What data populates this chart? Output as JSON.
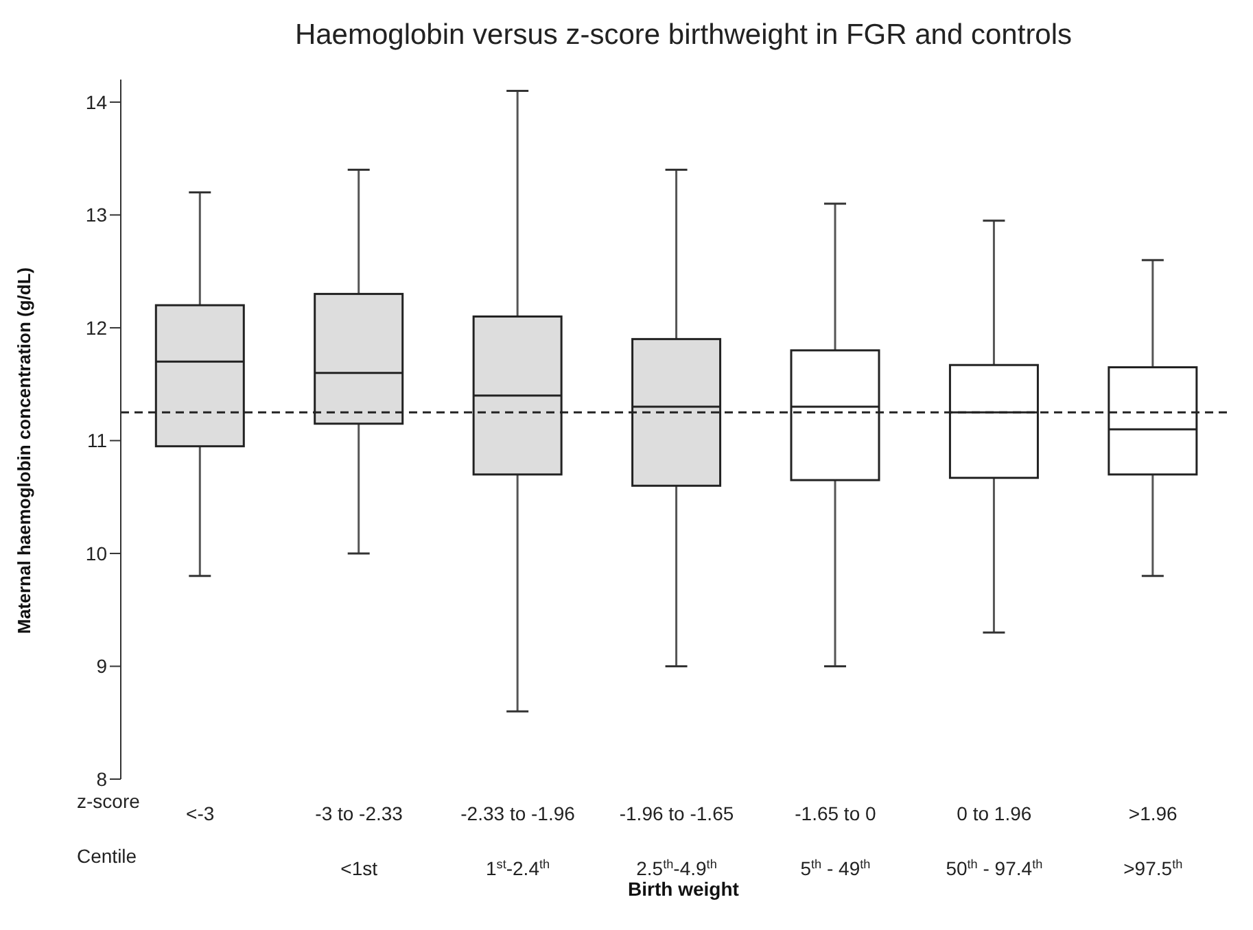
{
  "chart_data": {
    "type": "box",
    "title": "Haemoglobin versus z-score birthweight in FGR and controls",
    "xlabel": "Birth weight",
    "ylabel": "Maternal haemoglobin concentration (g/dL)",
    "categories": [
      "<-3",
      "-3 to -2.33\n<1st",
      "-2.33 to -1.96\n1$^{st}$-2.4$^{th}$",
      "-1.96 to -1.65\n2.5$^{th}$-4.9$^{th}$",
      "-1.65 to 0\n5$^{th}$ - 49$^{th}$",
      "0 to 1.96\n50$^{th}$ - 97.4$^{th}$",
      ">1.96\n>97.5$^{th}$"
    ],
    "boxes": [
      {
        "low": 9.8,
        "q1": 10.95,
        "median": 11.7,
        "q3": 12.2,
        "high": 13.2
      },
      {
        "low": 10.0,
        "q1": 11.15,
        "median": 11.6,
        "q3": 12.3,
        "high": 13.4
      },
      {
        "low": 8.6,
        "q1": 10.7,
        "median": 11.4,
        "q3": 12.1,
        "high": 14.1
      },
      {
        "low": 9.0,
        "q1": 10.6,
        "median": 11.3,
        "q3": 11.9,
        "high": 13.4
      },
      {
        "low": 9.0,
        "q1": 10.65,
        "median": 11.3,
        "q3": 11.8,
        "high": 13.1
      },
      {
        "low": 9.3,
        "q1": 10.67,
        "median": 11.25,
        "q3": 11.67,
        "high": 12.95
      },
      {
        "low": 9.8,
        "q1": 10.7,
        "median": 11.1,
        "q3": 11.65,
        "high": 12.6
      }
    ],
    "colors": [
      "#dddddd",
      "#dddddd",
      "#dddddd",
      "#dddddd",
      "#ffffff",
      "#ffffff",
      "#ffffff"
    ],
    "ylim": [
      8,
      14.2
    ],
    "yticks": [
      8,
      9,
      10,
      11,
      12,
      13,
      14
    ],
    "ref_lines": [
      {
        "axis": "y",
        "value": 11.25,
        "line_style": "dashed",
        "color": "#222222"
      }
    ],
    "annotations": [
      "z-score",
      "Centile"
    ],
    "grid": false
  }
}
